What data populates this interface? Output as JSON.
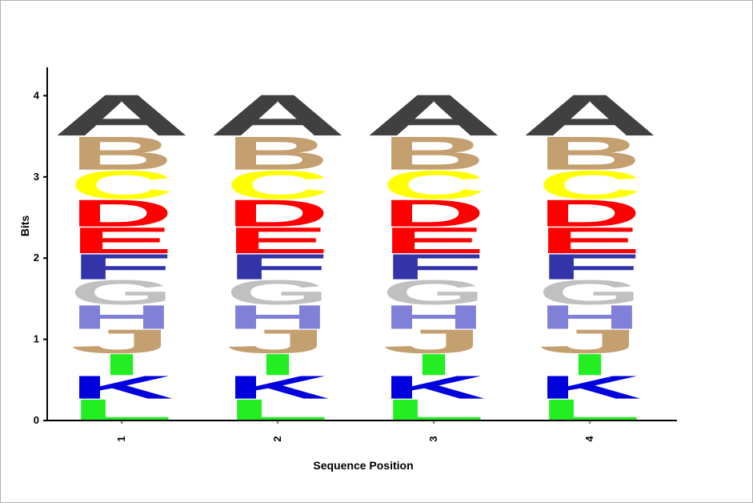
{
  "chart_data": {
    "type": "sequence-logo",
    "title": "",
    "xlabel": "Sequence Position",
    "ylabel": "Bits",
    "ylim": [
      0,
      4.35
    ],
    "yticks": [
      0,
      1,
      2,
      3,
      4
    ],
    "positions": [
      "1",
      "2",
      "3",
      "4"
    ],
    "stack_order_bottom_to_top": [
      "L",
      "K",
      "I",
      "J",
      "H",
      "G",
      "F",
      "E",
      "D",
      "C",
      "B",
      "A"
    ],
    "letters": [
      {
        "letter": "L",
        "bits": 0.27,
        "color": "#22ee22"
      },
      {
        "letter": "K",
        "bits": 0.29,
        "color": "#0000dd"
      },
      {
        "letter": "I",
        "bits": 0.27,
        "color": "#22ee22"
      },
      {
        "letter": "J",
        "bits": 0.3,
        "color": "#c4a070"
      },
      {
        "letter": "H",
        "bits": 0.3,
        "color": "#8080d8"
      },
      {
        "letter": "G",
        "bits": 0.31,
        "color": "#c0c0c0"
      },
      {
        "letter": "F",
        "bits": 0.32,
        "color": "#3333aa"
      },
      {
        "letter": "E",
        "bits": 0.33,
        "color": "#ff0000"
      },
      {
        "letter": "D",
        "bits": 0.34,
        "color": "#ff0000"
      },
      {
        "letter": "C",
        "bits": 0.36,
        "color": "#ffff00"
      },
      {
        "letter": "B",
        "bits": 0.42,
        "color": "#c4a070"
      },
      {
        "letter": "A",
        "bits": 0.52,
        "color": "#404040"
      }
    ]
  }
}
